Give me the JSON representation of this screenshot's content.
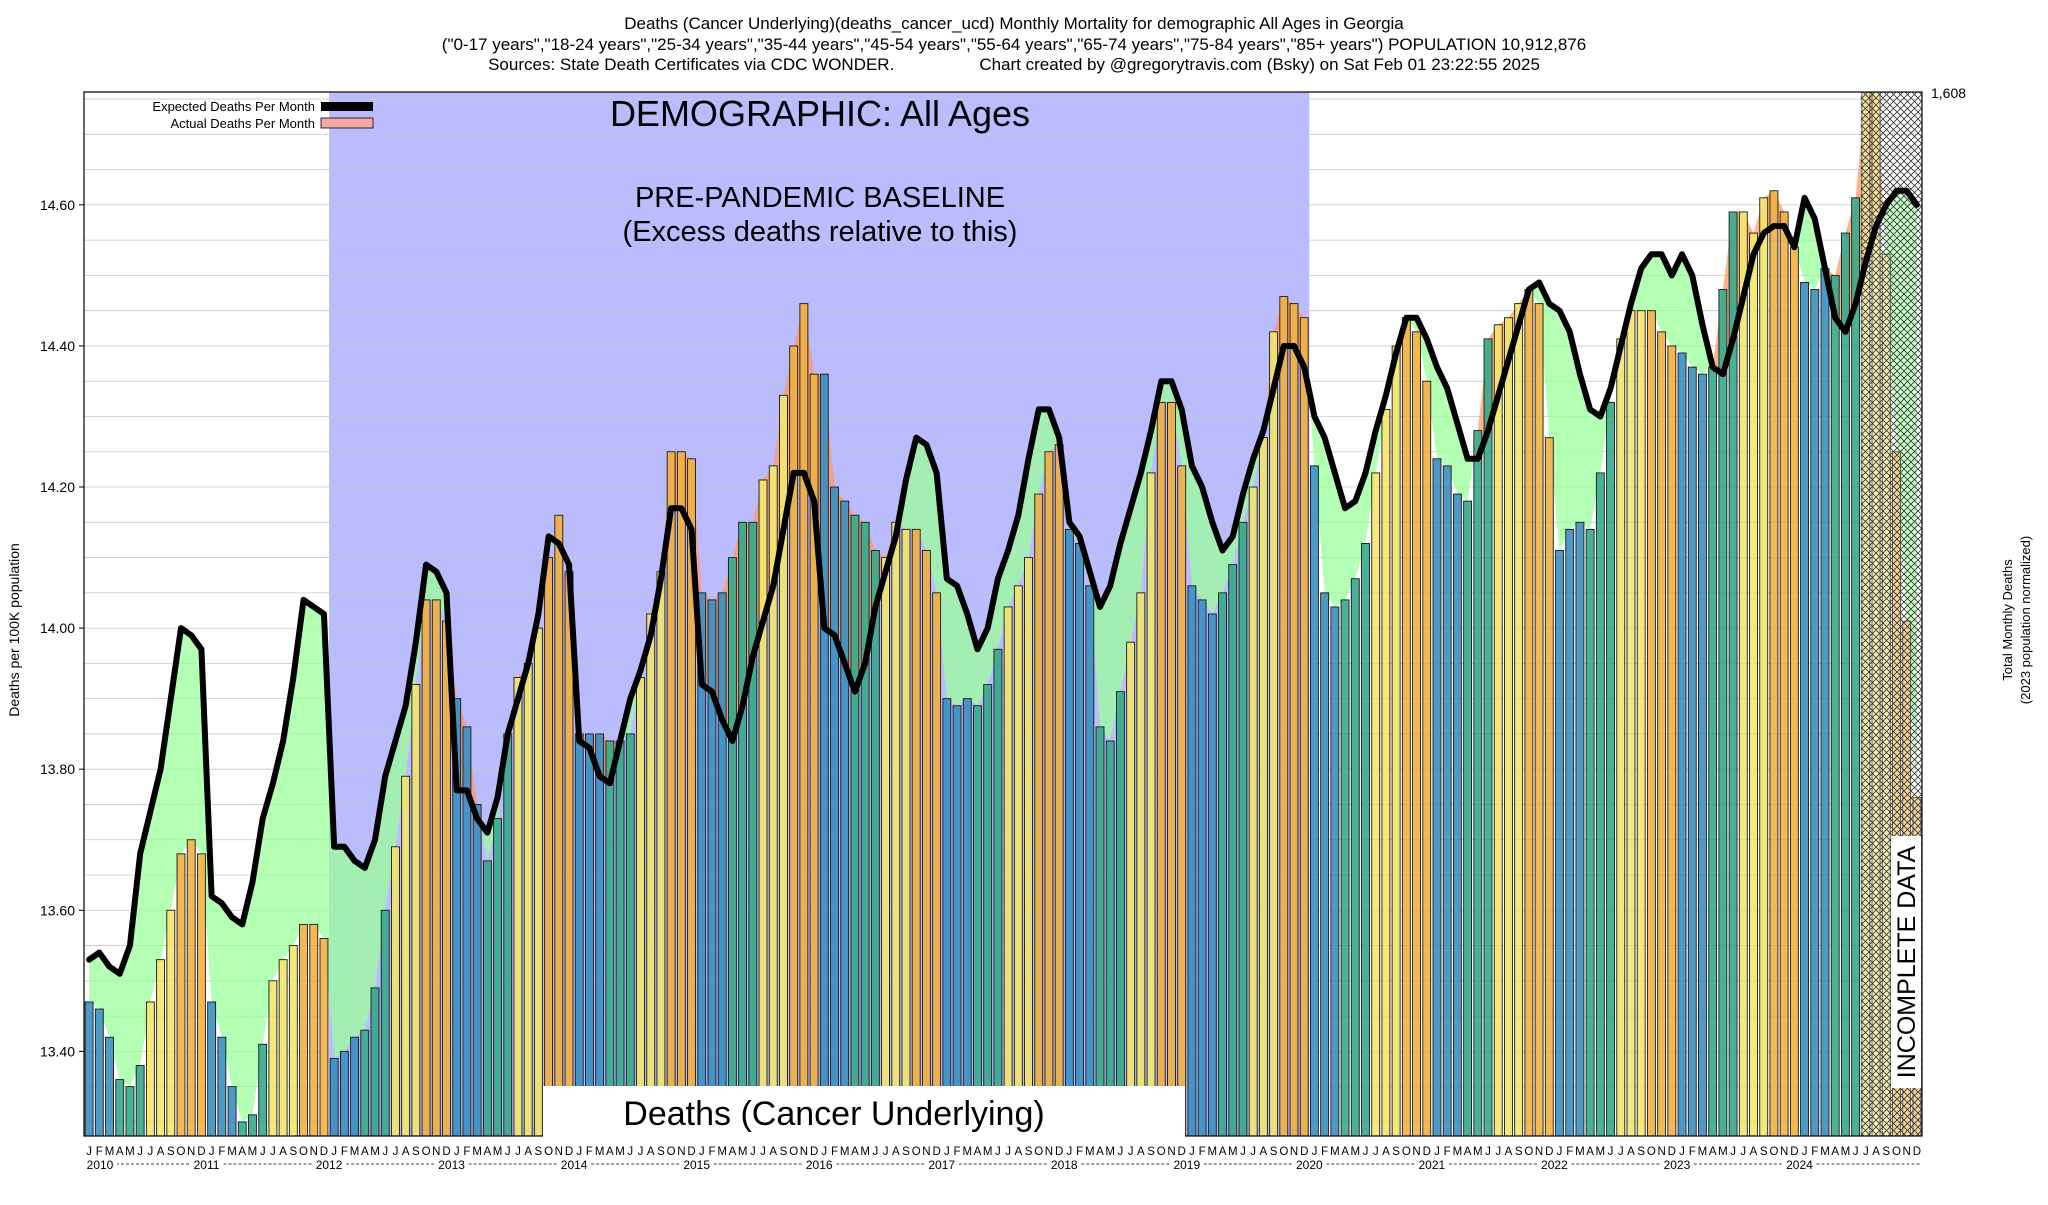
{
  "title_lines": [
    "Deaths (Cancer Underlying)(deaths_cancer_ucd) Monthly Mortality for demographic All Ages in Georgia",
    "(\"0-17 years\",\"18-24 years\",\"25-34 years\",\"35-44 years\",\"45-54 years\",\"55-64 years\",\"65-74 years\",\"75-84 years\",\"85+ years\") POPULATION 10,912,876",
    "Sources: State Death Certificates via CDC WONDER.                  Chart created by @gregorytravis.com (Bsky) on Sat Feb 01 23:22:55 2025"
  ],
  "annotations": {
    "demographic": "DEMOGRAPHIC: All Ages",
    "baseline_line1": "PRE-PANDEMIC BASELINE",
    "baseline_line2": "(Excess deaths relative to this)",
    "cause_label": "Deaths (Cancer Underlying)",
    "incomplete": "INCOMPLETE DATA"
  },
  "legend": {
    "expected": "Expected Deaths Per Month",
    "actual": "Actual Deaths Per Month"
  },
  "ylabel": "Deaths per 100K population",
  "y2label_line1": "Total Monthly Deaths",
  "y2label_line2": "(2023 population normalized)",
  "y2_top_label": "1,608",
  "colors": {
    "baseline_region": "#bbbbff",
    "excess_fill": "#99ff99",
    "deficit_fill": "#ff9966",
    "expected_line": "#000000",
    "season_winter": "#3a8fc0",
    "season_spring": "#35a88a",
    "season_summer": "#f2e56a",
    "season_fall": "#f0b040"
  },
  "chart_data": {
    "type": "bar",
    "title": "Deaths (Cancer Underlying)(deaths_cancer_ucd) Monthly Mortality for demographic All Ages in Georgia",
    "xlabel": "",
    "ylabel": "Deaths per 100K population",
    "ylim": [
      13.28,
      14.76
    ],
    "yticks": [
      13.4,
      13.6,
      13.8,
      14.0,
      14.2,
      14.4,
      14.6
    ],
    "month_letters": [
      "J",
      "F",
      "M",
      "A",
      "M",
      "J",
      "J",
      "A",
      "S",
      "O",
      "N",
      "D"
    ],
    "years": [
      "2010",
      "2011",
      "2012",
      "2013",
      "2014",
      "2015",
      "2016",
      "2017",
      "2018",
      "2019",
      "2020",
      "2021",
      "2022",
      "2023",
      "2024"
    ],
    "baseline_period": [
      "2012-01",
      "2019-12"
    ],
    "incomplete_from": "2024-07",
    "grid": true,
    "legend_position": "top-left",
    "series": [
      {
        "name": "Actual Deaths Per Month",
        "start": "2010-01",
        "values": [
          13.47,
          13.46,
          13.42,
          13.36,
          13.35,
          13.38,
          13.47,
          13.53,
          13.6,
          13.68,
          13.7,
          13.68,
          13.47,
          13.42,
          13.35,
          13.3,
          13.31,
          13.41,
          13.5,
          13.53,
          13.55,
          13.58,
          13.58,
          13.56,
          13.39,
          13.4,
          13.42,
          13.43,
          13.49,
          13.6,
          13.69,
          13.79,
          13.92,
          14.04,
          14.04,
          14.01,
          13.9,
          13.86,
          13.75,
          13.67,
          13.73,
          13.85,
          13.93,
          13.95,
          14.0,
          14.1,
          14.16,
          14.08,
          13.85,
          13.85,
          13.85,
          13.84,
          13.84,
          13.85,
          13.93,
          14.02,
          14.08,
          14.25,
          14.25,
          14.24,
          14.05,
          14.04,
          14.05,
          14.1,
          14.15,
          14.15,
          14.21,
          14.23,
          14.33,
          14.4,
          14.46,
          14.36,
          14.36,
          14.2,
          14.18,
          14.16,
          14.15,
          14.11,
          14.1,
          14.15,
          14.14,
          14.14,
          14.11,
          14.05,
          13.9,
          13.89,
          13.9,
          13.89,
          13.92,
          13.97,
          14.03,
          14.06,
          14.1,
          14.19,
          14.25,
          14.26,
          14.14,
          14.12,
          14.06,
          13.86,
          13.84,
          13.91,
          13.98,
          14.05,
          14.22,
          14.32,
          14.32,
          14.23,
          14.06,
          14.04,
          14.02,
          14.05,
          14.09,
          14.15,
          14.2,
          14.27,
          14.42,
          14.47,
          14.46,
          14.44,
          14.23,
          14.05,
          14.03,
          14.04,
          14.07,
          14.12,
          14.22,
          14.31,
          14.4,
          14.44,
          14.42,
          14.35,
          14.24,
          14.23,
          14.19,
          14.18,
          14.28,
          14.41,
          14.43,
          14.44,
          14.46,
          14.48,
          14.46,
          14.27,
          14.11,
          14.14,
          14.15,
          14.14,
          14.22,
          14.32,
          14.41,
          14.45,
          14.45,
          14.45,
          14.42,
          14.4,
          14.39,
          14.37,
          14.36,
          14.37,
          14.48,
          14.59,
          14.59,
          14.56,
          14.61,
          14.62,
          14.59,
          14.54,
          14.49,
          14.48,
          14.51,
          14.5,
          14.56,
          14.61,
          14.76,
          14.76,
          14.53,
          14.25,
          14.01,
          13.76
        ]
      },
      {
        "name": "Expected Deaths Per Month",
        "start": "2010-01",
        "values": [
          13.53,
          13.54,
          13.52,
          13.51,
          13.55,
          13.68,
          13.74,
          13.8,
          13.9,
          14.0,
          13.99,
          13.97,
          13.62,
          13.61,
          13.59,
          13.58,
          13.64,
          13.73,
          13.78,
          13.84,
          13.93,
          14.04,
          14.03,
          14.02,
          13.69,
          13.69,
          13.67,
          13.66,
          13.7,
          13.79,
          13.84,
          13.89,
          13.98,
          14.09,
          14.08,
          14.05,
          13.77,
          13.77,
          13.73,
          13.71,
          13.76,
          13.85,
          13.9,
          13.95,
          14.02,
          14.13,
          14.12,
          14.09,
          13.84,
          13.83,
          13.79,
          13.78,
          13.84,
          13.9,
          13.94,
          13.99,
          14.07,
          14.17,
          14.17,
          14.14,
          13.92,
          13.91,
          13.87,
          13.84,
          13.89,
          13.96,
          14.01,
          14.06,
          14.14,
          14.22,
          14.22,
          14.18,
          14.0,
          13.99,
          13.95,
          13.91,
          13.95,
          14.03,
          14.08,
          14.13,
          14.21,
          14.27,
          14.26,
          14.22,
          14.07,
          14.06,
          14.02,
          13.97,
          14.0,
          14.07,
          14.11,
          14.16,
          14.24,
          14.31,
          14.31,
          14.27,
          14.15,
          14.13,
          14.08,
          14.03,
          14.06,
          14.12,
          14.17,
          14.22,
          14.28,
          14.35,
          14.35,
          14.31,
          14.23,
          14.2,
          14.15,
          14.11,
          14.13,
          14.19,
          14.24,
          14.28,
          14.34,
          14.4,
          14.4,
          14.37,
          14.3,
          14.27,
          14.22,
          14.17,
          14.18,
          14.22,
          14.28,
          14.33,
          14.39,
          14.44,
          14.44,
          14.41,
          14.37,
          14.34,
          14.29,
          14.24,
          14.24,
          14.28,
          14.33,
          14.38,
          14.43,
          14.48,
          14.49,
          14.46,
          14.45,
          14.42,
          14.36,
          14.31,
          14.3,
          14.34,
          14.4,
          14.46,
          14.51,
          14.53,
          14.53,
          14.5,
          14.53,
          14.5,
          14.43,
          14.37,
          14.36,
          14.41,
          14.47,
          14.53,
          14.56,
          14.57,
          14.57,
          14.54,
          14.61,
          14.58,
          14.51,
          14.44,
          14.42,
          14.46,
          14.52,
          14.57,
          14.6,
          14.62,
          14.62,
          14.6
        ]
      }
    ]
  }
}
